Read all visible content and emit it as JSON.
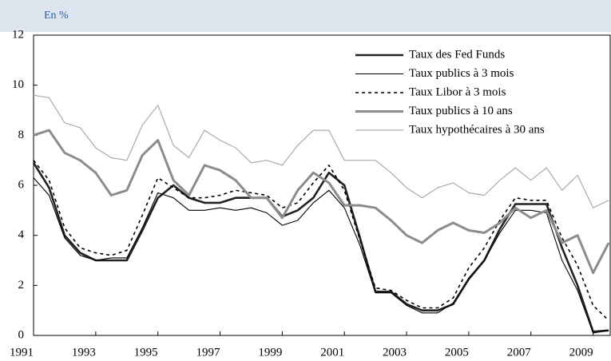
{
  "chart_data": {
    "type": "line",
    "y_label": "En %",
    "x": [
      1991.0,
      1991.5,
      1992.0,
      1992.5,
      1993.0,
      1993.5,
      1994.0,
      1994.5,
      1995.0,
      1995.5,
      1996.0,
      1996.5,
      1997.0,
      1997.5,
      1998.0,
      1998.5,
      1999.0,
      1999.5,
      2000.0,
      2000.5,
      2001.0,
      2001.5,
      2002.0,
      2002.5,
      2003.0,
      2003.5,
      2004.0,
      2004.5,
      2005.0,
      2005.5,
      2006.0,
      2006.5,
      2007.0,
      2007.5,
      2008.0,
      2008.5,
      2009.0,
      2009.5
    ],
    "series": [
      {
        "name": "Taux des Fed Funds",
        "color": "#222222",
        "width": 2.6,
        "dash": "none",
        "values": [
          6.9,
          5.9,
          4.0,
          3.3,
          3.0,
          3.0,
          3.0,
          4.2,
          5.5,
          6.0,
          5.5,
          5.3,
          5.3,
          5.5,
          5.5,
          5.5,
          4.75,
          5.0,
          5.5,
          6.5,
          6.0,
          3.9,
          1.75,
          1.75,
          1.25,
          1.0,
          1.0,
          1.25,
          2.25,
          3.0,
          4.25,
          5.25,
          5.25,
          5.25,
          3.5,
          2.0,
          0.15,
          0.2
        ]
      },
      {
        "name": "Taux publics à 3 mois",
        "color": "#000000",
        "width": 1.1,
        "dash": "none",
        "values": [
          6.3,
          5.6,
          3.9,
          3.2,
          3.0,
          3.1,
          3.1,
          4.3,
          5.7,
          5.5,
          5.0,
          5.0,
          5.1,
          5.0,
          5.1,
          4.9,
          4.4,
          4.6,
          5.3,
          5.8,
          5.1,
          3.6,
          1.7,
          1.7,
          1.2,
          0.9,
          0.9,
          1.3,
          2.3,
          3.0,
          4.1,
          5.0,
          5.0,
          4.9,
          3.0,
          1.8,
          0.1,
          0.2
        ]
      },
      {
        "name": "Taux Libor à 3 mois",
        "color": "#000000",
        "width": 1.6,
        "dash": "4 4",
        "values": [
          7.0,
          6.2,
          4.3,
          3.5,
          3.3,
          3.2,
          3.4,
          4.8,
          6.3,
          5.9,
          5.5,
          5.5,
          5.6,
          5.8,
          5.7,
          5.6,
          5.1,
          5.3,
          6.1,
          6.8,
          5.8,
          3.8,
          1.9,
          1.8,
          1.4,
          1.1,
          1.1,
          1.5,
          2.7,
          3.5,
          4.6,
          5.5,
          5.4,
          5.4,
          3.9,
          2.8,
          1.2,
          0.6
        ]
      },
      {
        "name": "Taux publics à 10 ans",
        "color": "#8c8c8c",
        "width": 3,
        "dash": "none",
        "values": [
          8.0,
          8.2,
          7.3,
          7.0,
          6.5,
          5.6,
          5.8,
          7.2,
          7.8,
          6.2,
          5.6,
          6.8,
          6.6,
          6.2,
          5.5,
          5.5,
          4.7,
          5.8,
          6.5,
          6.1,
          5.2,
          5.2,
          5.1,
          4.6,
          4.0,
          3.7,
          4.2,
          4.5,
          4.2,
          4.1,
          4.5,
          5.1,
          4.7,
          5.0,
          3.7,
          4.0,
          2.5,
          3.7
        ]
      },
      {
        "name": "Taux hypothécaires à 30 ans",
        "color": "#aaaaaa",
        "width": 1.2,
        "dash": "none",
        "values": [
          9.6,
          9.5,
          8.5,
          8.3,
          7.5,
          7.1,
          7.0,
          8.4,
          9.2,
          7.6,
          7.1,
          8.2,
          7.8,
          7.5,
          6.9,
          7.0,
          6.8,
          7.6,
          8.2,
          8.2,
          7.0,
          7.0,
          7.0,
          6.5,
          5.9,
          5.5,
          5.9,
          6.1,
          5.7,
          5.6,
          6.2,
          6.7,
          6.2,
          6.7,
          5.8,
          6.4,
          5.1,
          5.4
        ]
      }
    ],
    "xlim": [
      1991,
      2009.55
    ],
    "xticks": [
      1991,
      1993,
      1995,
      1997,
      1999,
      2001,
      2003,
      2005,
      2007,
      2009
    ],
    "ylim": [
      0,
      12
    ],
    "yticks": [
      0,
      2,
      4,
      6,
      8,
      10,
      12
    ],
    "legend": "upper right"
  }
}
